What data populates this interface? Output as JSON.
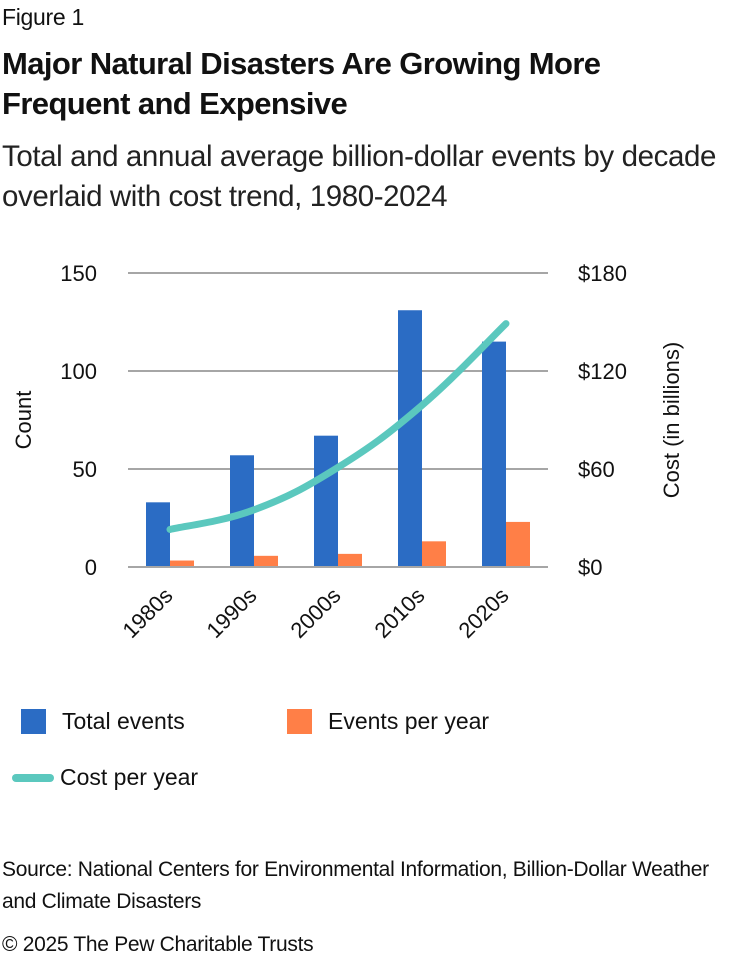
{
  "header": {
    "figure_label": "Figure 1",
    "title": "Major Natural Disasters Are Growing More Frequent and Expensive",
    "subtitle": "Total and annual average billion-dollar events by decade overlaid with cost trend, 1980-2024"
  },
  "chart_data": {
    "type": "bar",
    "title": "Major Natural Disasters Are Growing More Frequent and Expensive",
    "subtitle": "Total and annual average billion-dollar events by decade overlaid with cost trend, 1980-2024",
    "categories": [
      "1980s",
      "1990s",
      "2000s",
      "2010s",
      "2020s"
    ],
    "series": [
      {
        "name": "Total events",
        "type": "bar",
        "axis": "left",
        "color": "#2B6CC4",
        "values": [
          33,
          57,
          67,
          131,
          115
        ]
      },
      {
        "name": "Events per year",
        "type": "bar",
        "axis": "left",
        "color": "#FF7F47",
        "values": [
          3.3,
          5.7,
          6.7,
          13.1,
          23
        ]
      },
      {
        "name": "Cost per year",
        "type": "line",
        "axis": "right",
        "color": "#5BC8BE",
        "values": [
          23,
          35,
          61,
          99,
          149
        ]
      }
    ],
    "xlabel": "",
    "ylabel": "Count",
    "ylabel_right": "Cost (in billions)",
    "ylim": [
      0,
      150
    ],
    "ylim_right": [
      0,
      180
    ],
    "yticks": [
      "0",
      "50",
      "100",
      "150"
    ],
    "yticks_values": [
      0,
      50,
      100,
      150
    ],
    "yticks_right": [
      "$0",
      "$60",
      "$120",
      "$180"
    ],
    "yticks_right_values": [
      0,
      60,
      120,
      180
    ],
    "grid": true,
    "legend_position": "bottom"
  },
  "legend": {
    "items": [
      {
        "label": "Total events",
        "color": "#2B6CC4"
      },
      {
        "label": "Events per year",
        "color": "#FF7F47"
      },
      {
        "label": "Cost per year",
        "color": "#5BC8BE"
      }
    ]
  },
  "footer": {
    "source": "Source: National Centers for Environmental Information, Billion-Dollar Weather and Climate Disasters",
    "copyright": "© 2025 The Pew Charitable Trusts"
  }
}
